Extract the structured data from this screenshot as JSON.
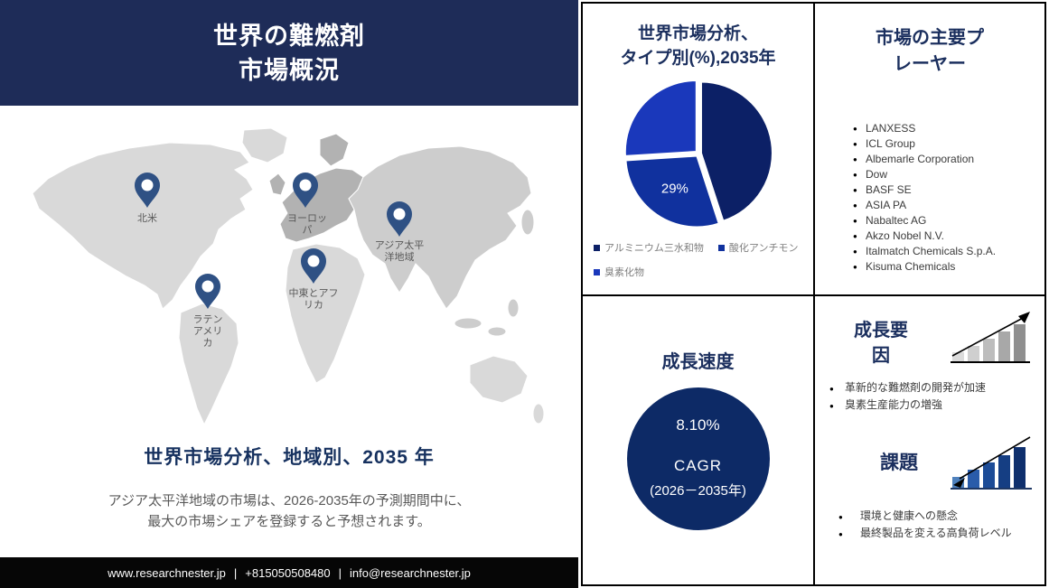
{
  "header": {
    "title_line1": "世界の難燃剤",
    "title_line2": "市場概況"
  },
  "left_panel": {
    "map_regions": [
      {
        "name": "north-america",
        "label_lines": [
          "北米"
        ]
      },
      {
        "name": "europe",
        "label_lines": [
          "ヨーロッ",
          "パ"
        ]
      },
      {
        "name": "asia-pacific",
        "label_lines": [
          "アジア太平",
          "洋地域"
        ]
      },
      {
        "name": "middle-east-africa",
        "label_lines": [
          "中東とアフ",
          "リカ"
        ]
      },
      {
        "name": "latin-america",
        "label_lines": [
          "ラテン",
          "アメリ",
          "カ"
        ]
      }
    ],
    "regional_heading": "世界市場分析、地域別、2035 年",
    "description_line1": "アジア太平洋地域の市場は、2026-2035年の予測期間中に、",
    "description_line2": "最大の市場シェアを登録すると予想されます。"
  },
  "footer": {
    "website": "www.researchnester.jp",
    "divider1": "|",
    "phone": "+815050508480",
    "divider2": "|",
    "email": "info@researchnester.jp"
  },
  "pie_section": {
    "title_line1": "世界市場分析、",
    "title_line2": "タイプ別(%),2035年"
  },
  "chart_data": {
    "type": "pie",
    "title": "世界市場分析、タイプ別(%),2035年",
    "labels": [
      "アルミニウム三水和物",
      "酸化アンチモン",
      "臭素化物"
    ],
    "values": [
      45,
      29,
      26
    ],
    "displayed_labels": [
      "",
      "29%",
      ""
    ],
    "colors": [
      "#0c2066",
      "#10319e",
      "#1a38bb"
    ],
    "start_angle_deg": 0,
    "clockwise": true,
    "legend_position": "bottom"
  },
  "growth_section": {
    "title": "成長速度",
    "rate": "8.10%",
    "cagr_label": "CAGR",
    "period": "(2026－2035年)"
  },
  "players_section": {
    "title_line1": "市場の主要プ",
    "title_line2": "レーヤー",
    "companies": [
      "LANXESS",
      "ICL Group",
      "Albemarle Corporation",
      "Dow",
      "BASF SE",
      "ASIA PA",
      "Nabaltec AG",
      "Akzo Nobel N.V.",
      "Italmatch Chemicals S.p.A.",
      "Kisuma Chemicals"
    ]
  },
  "drivers_section": {
    "title_line1": "成長要",
    "title_line2": "因",
    "bullets": [
      "革新的な難燃剤の開発が加速",
      "臭素生産能力の増強"
    ]
  },
  "challenges_section": {
    "title": "課題",
    "bullets": [
      "環境と健康への懸念",
      "最終製品を変える高負荷レベル"
    ]
  },
  "colors": {
    "header_navy": "#1e2c58",
    "accent_navy": "#1b2f5e",
    "growth_circle_navy": "#0d2a66",
    "footer_black": "#060606",
    "pin_blue": "#2f5184",
    "map_gray": "#d9d9d9",
    "europe_gray": "#b2b2b2",
    "asia_gray": "#cdcdcd",
    "text_gray": "#595959"
  }
}
